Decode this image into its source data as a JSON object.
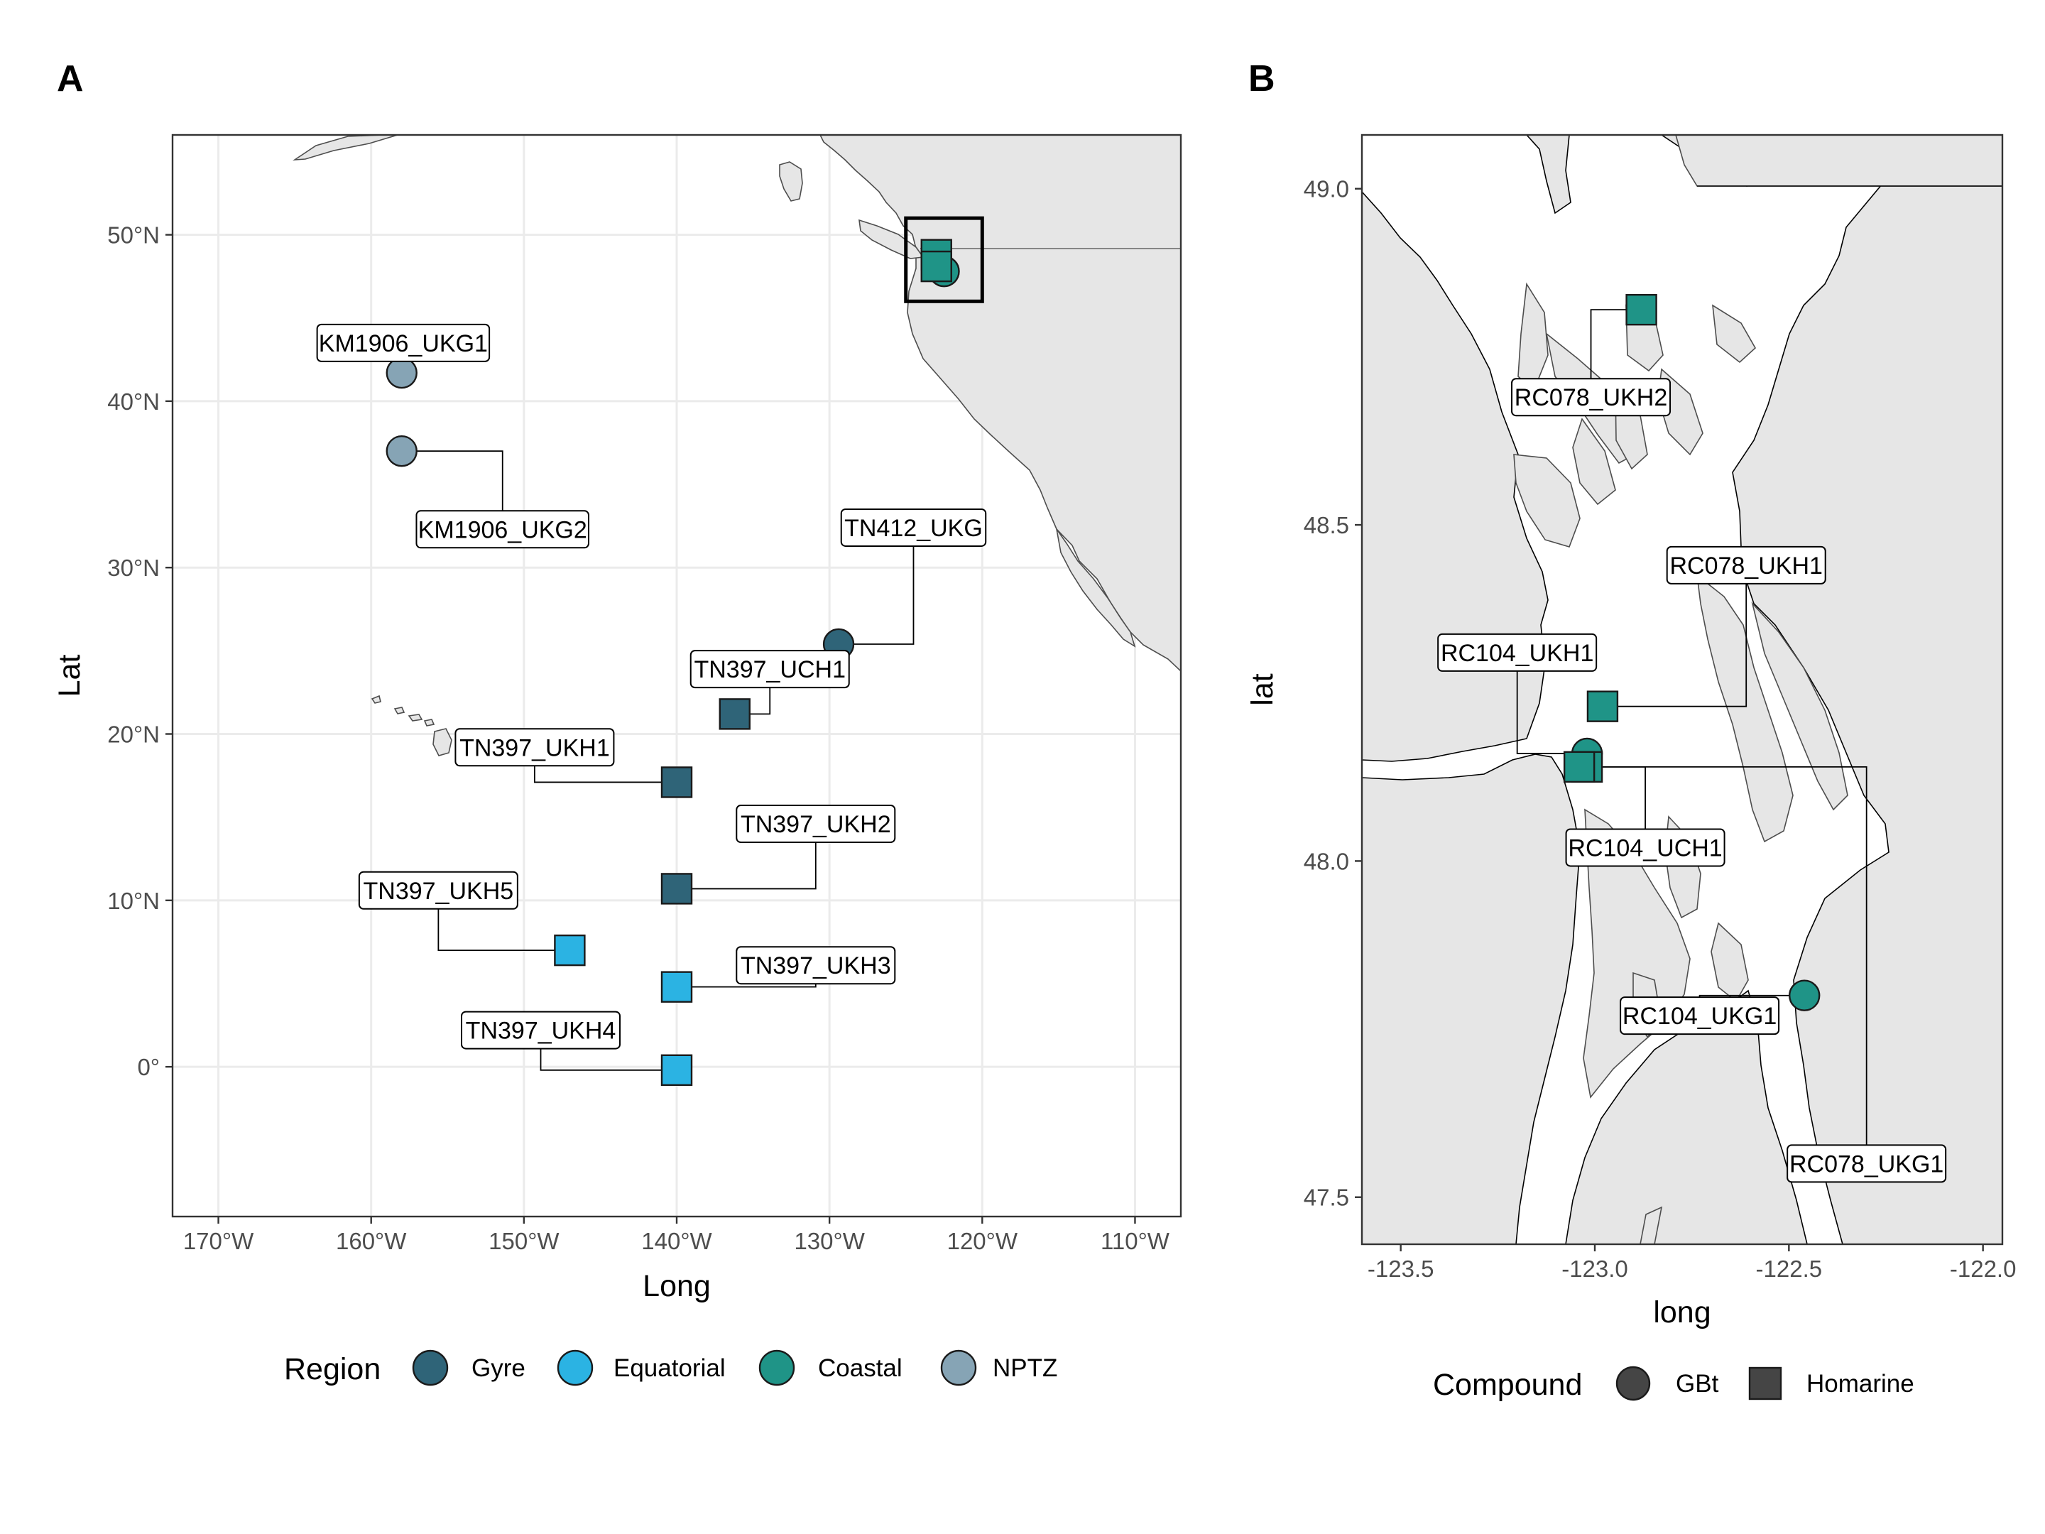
{
  "panels": {
    "a": {
      "letter": "A"
    },
    "b": {
      "letter": "B"
    }
  },
  "chart_data": [
    {
      "type": "scatter",
      "panel": "A",
      "xlabel": "Long",
      "ylabel": "Lat",
      "xlim": [
        -173,
        -107
      ],
      "ylim": [
        -9,
        56
      ],
      "x_ticks": [
        -170,
        -160,
        -150,
        -140,
        -130,
        -120,
        -110
      ],
      "x_tick_labels": [
        "170°W",
        "160°W",
        "150°W",
        "140°W",
        "130°W",
        "120°W",
        "110°W"
      ],
      "y_ticks": [
        0,
        10,
        20,
        30,
        40,
        50
      ],
      "y_tick_labels": [
        "0°",
        "10°N",
        "20°N",
        "30°N",
        "40°N",
        "50°N"
      ],
      "grid": true,
      "inset_box": {
        "lon": [
          -125,
          -120
        ],
        "lat": [
          46,
          51
        ]
      },
      "points": [
        {
          "label": "KM1906_UKG1",
          "lon": -158.0,
          "lat": 41.7,
          "region": "NPTZ",
          "compound": "GBt",
          "label_lon": -157.9,
          "label_lat": 43.5
        },
        {
          "label": "KM1906_UKG2",
          "lon": -158.0,
          "lat": 37.0,
          "region": "NPTZ",
          "compound": "GBt",
          "label_lon": -151.4,
          "label_lat": 32.3
        },
        {
          "label": "TN412_UKG",
          "lon": -129.4,
          "lat": 25.4,
          "region": "Gyre",
          "compound": "GBt",
          "label_lon": -124.5,
          "label_lat": 32.4
        },
        {
          "label": "TN397_UCH1",
          "lon": -136.2,
          "lat": 21.2,
          "region": "Gyre",
          "compound": "Homarine",
          "label_lon": -133.9,
          "label_lat": 23.9
        },
        {
          "label": "TN397_UKH1",
          "lon": -140.0,
          "lat": 17.1,
          "region": "Gyre",
          "compound": "Homarine",
          "label_lon": -149.3,
          "label_lat": 19.2
        },
        {
          "label": "TN397_UKH2",
          "lon": -140.0,
          "lat": 10.7,
          "region": "Gyre",
          "compound": "Homarine",
          "label_lon": -130.9,
          "label_lat": 14.6
        },
        {
          "label": "TN397_UKH5",
          "lon": -147.0,
          "lat": 7.0,
          "region": "Equatorial",
          "compound": "Homarine",
          "label_lon": -155.6,
          "label_lat": 10.6
        },
        {
          "label": "TN397_UKH3",
          "lon": -140.0,
          "lat": 4.8,
          "region": "Equatorial",
          "compound": "Homarine",
          "label_lon": -130.9,
          "label_lat": 6.1
        },
        {
          "label": "TN397_UKH4",
          "lon": -140.0,
          "lat": -0.2,
          "region": "Equatorial",
          "compound": "Homarine",
          "label_lon": -148.9,
          "label_lat": 2.2
        },
        {
          "label": "",
          "lon": -122.5,
          "lat": 47.8,
          "region": "Coastal",
          "compound": "GBt"
        },
        {
          "label": "",
          "lon": -123.0,
          "lat": 48.8,
          "region": "Coastal",
          "compound": "Homarine"
        },
        {
          "label": "",
          "lon": -123.0,
          "lat": 48.1,
          "region": "Coastal",
          "compound": "Homarine"
        }
      ]
    },
    {
      "type": "scatter",
      "panel": "B",
      "xlabel": "long",
      "ylabel": "lat",
      "xlim": [
        -123.6,
        -121.95
      ],
      "ylim": [
        47.43,
        49.08
      ],
      "x_ticks": [
        -123.5,
        -123.0,
        -122.5,
        -122.0
      ],
      "x_tick_labels": [
        "-123.5",
        "-123.0",
        "-122.5",
        "-122.0"
      ],
      "y_ticks": [
        47.5,
        48.0,
        48.5,
        49.0
      ],
      "y_tick_labels": [
        "47.5",
        "48.0",
        "48.5",
        "49.0"
      ],
      "grid": false,
      "points": [
        {
          "label": "RC078_UKH2",
          "lon": -122.88,
          "lat": 48.82,
          "region": "Coastal",
          "compound": "Homarine",
          "label_lon": -123.01,
          "label_lat": 48.69
        },
        {
          "label": "RC078_UKH1",
          "lon": -122.98,
          "lat": 48.23,
          "region": "Coastal",
          "compound": "Homarine",
          "label_lon": -122.61,
          "label_lat": 48.44
        },
        {
          "label": "RC104_UKH1",
          "lon": -123.02,
          "lat": 48.16,
          "region": "Coastal",
          "compound": "GBt",
          "label_lon": -123.2,
          "label_lat": 48.31
        },
        {
          "label": "RC104_UCH1",
          "lon": -123.02,
          "lat": 48.14,
          "region": "Coastal",
          "compound": "Homarine",
          "label_lon": -122.87,
          "label_lat": 48.02
        },
        {
          "label": "RC104_UKG1",
          "lon": -122.46,
          "lat": 47.8,
          "region": "Coastal",
          "compound": "GBt",
          "label_lon": -122.73,
          "label_lat": 47.77
        },
        {
          "label": "RC078_UKG1",
          "lon": -123.04,
          "lat": 48.14,
          "region": "Coastal",
          "compound": "Homarine",
          "label_lon": -122.3,
          "label_lat": 47.55
        }
      ]
    }
  ],
  "legends": {
    "region": {
      "title": "Region",
      "items": [
        {
          "label": "Gyre",
          "color": "#2f6478"
        },
        {
          "label": "Equatorial",
          "color": "#2bb3e3"
        },
        {
          "label": "Coastal",
          "color": "#1f9487"
        },
        {
          "label": "NPTZ",
          "color": "#86a4b5"
        }
      ]
    },
    "compound": {
      "title": "Compound",
      "items": [
        {
          "label": "GBt",
          "shape": "circle"
        },
        {
          "label": "Homarine",
          "shape": "square"
        }
      ]
    }
  },
  "colors": {
    "land": "#e6e6e6",
    "grid": "#ebebeb"
  }
}
